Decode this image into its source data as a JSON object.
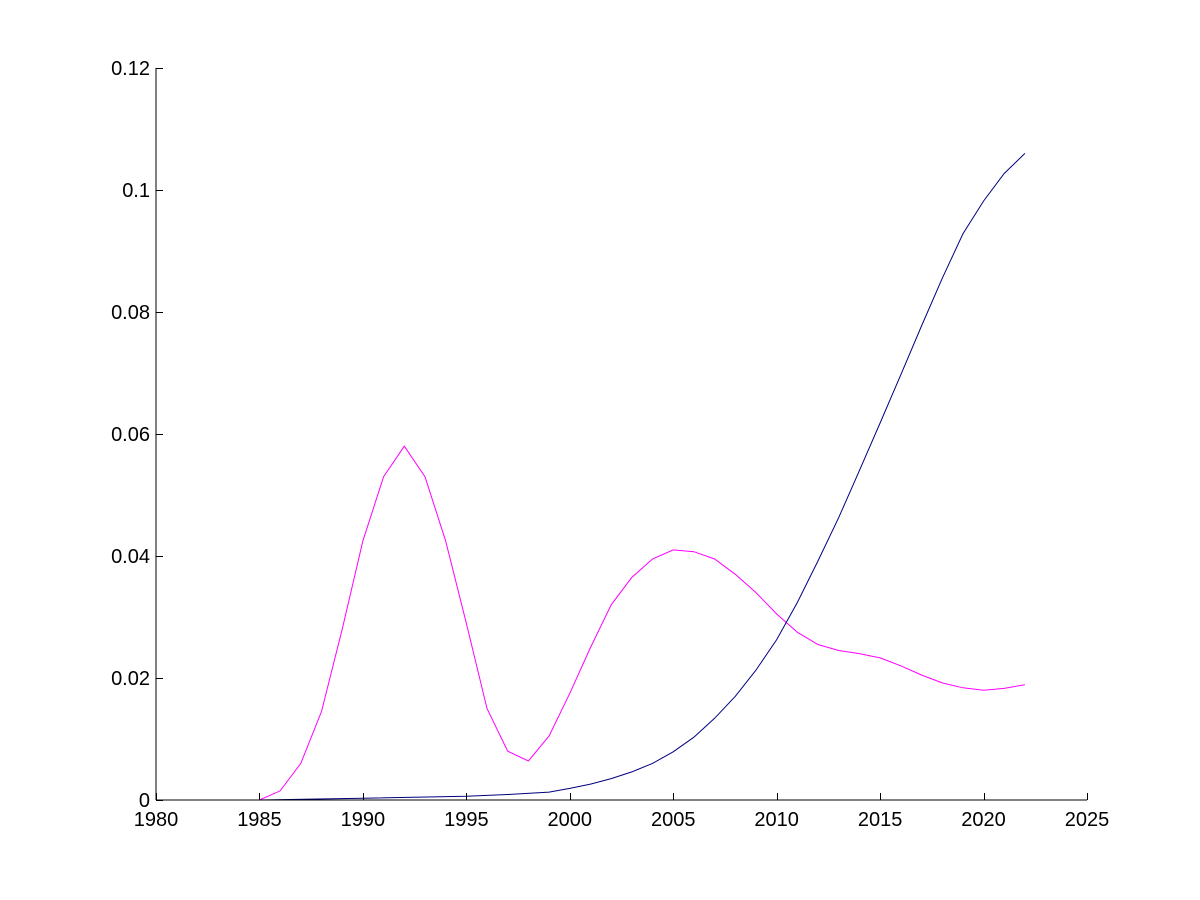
{
  "chart_data": {
    "type": "line",
    "title": "",
    "xlabel": "",
    "ylabel": "",
    "xlim": [
      1980,
      2025
    ],
    "ylim": [
      0,
      0.12
    ],
    "grid": false,
    "x_ticks": [
      1980,
      1985,
      1990,
      1995,
      2000,
      2005,
      2010,
      2015,
      2020,
      2025
    ],
    "x_tick_labels": [
      "1980",
      "1985",
      "1990",
      "1995",
      "2000",
      "2005",
      "2010",
      "2015",
      "2020",
      "2025"
    ],
    "y_ticks": [
      0,
      0.02,
      0.04,
      0.06,
      0.08,
      0.1,
      0.12
    ],
    "y_tick_labels": [
      "0",
      "0.02",
      "0.04",
      "0.06",
      "0.08",
      "0.1",
      "0.12"
    ],
    "series": [
      {
        "color": "#ff00ff",
        "x": [
          1980,
          1985,
          1986,
          1987,
          1988,
          1989,
          1990,
          1991,
          1992,
          1993,
          1994,
          1995,
          1996,
          1997,
          1998,
          1999,
          2000,
          2001,
          2002,
          2003,
          2004,
          2005,
          2006,
          2007,
          2008,
          2009,
          2010,
          2011,
          2012,
          2013,
          2014,
          2015,
          2016,
          2017,
          2018,
          2019,
          2020,
          2021,
          2022
        ],
        "y": [
          0,
          0,
          0.0015,
          0.006,
          0.0145,
          0.028,
          0.0425,
          0.053,
          0.058,
          0.053,
          0.0425,
          0.029,
          0.015,
          0.008,
          0.0064,
          0.0105,
          0.0175,
          0.025,
          0.032,
          0.0365,
          0.0395,
          0.041,
          0.0407,
          0.0395,
          0.037,
          0.034,
          0.0305,
          0.0275,
          0.0255,
          0.0245,
          0.024,
          0.0233,
          0.022,
          0.0205,
          0.0192,
          0.0184,
          0.018,
          0.0183,
          0.0189
        ]
      },
      {
        "color": "#000080",
        "x": [
          1980,
          1985,
          1990,
          1995,
          1997,
          1999,
          2000,
          2001,
          2002,
          2003,
          2004,
          2005,
          2006,
          2007,
          2008,
          2009,
          2010,
          2011,
          2012,
          2013,
          2014,
          2015,
          2016,
          2017,
          2018,
          2019,
          2020,
          2021,
          2022
        ],
        "y": [
          0,
          0,
          0.0003,
          0.0006,
          0.0009,
          0.0013,
          0.0019,
          0.0026,
          0.0035,
          0.0046,
          0.006,
          0.0079,
          0.0103,
          0.0134,
          0.017,
          0.0213,
          0.0263,
          0.0324,
          0.0392,
          0.0463,
          0.054,
          0.0618,
          0.0697,
          0.0777,
          0.0855,
          0.0928,
          0.0982,
          0.1027,
          0.106
        ]
      }
    ]
  }
}
